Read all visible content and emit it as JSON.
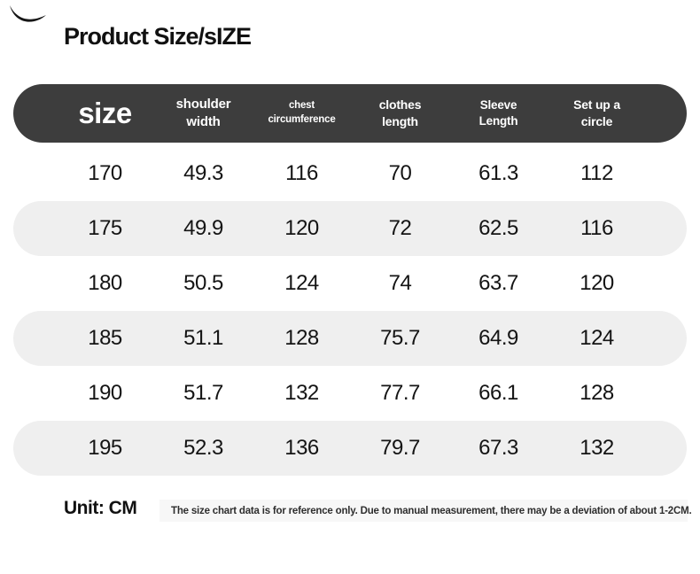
{
  "page": {
    "title": "Product Size/sIZE",
    "unit_label": "Unit: CM",
    "disclaimer": "The size chart data is for reference only. Due to manual measurement, there may be a deviation of about 1-2CM."
  },
  "colors": {
    "header_bg": "#3d3d3d",
    "header_text": "#ffffff",
    "row_alt_bg": "#efefef",
    "body_text": "#141414",
    "note_bg": "#f7f7f7"
  },
  "icons": {
    "corner_swoosh": "decorative dark brush swoosh, top-left corner"
  },
  "table": {
    "header": {
      "size_label": "size",
      "columns": [
        {
          "line1": "shoulder",
          "line2": "width"
        },
        {
          "line1": "chest",
          "line2": "circumference"
        },
        {
          "line1": "clothes",
          "line2": "length"
        },
        {
          "line1": "Sleeve",
          "line2": "Length"
        },
        {
          "line1": "Set up a",
          "line2": "circle"
        }
      ]
    },
    "rows": [
      [
        "170",
        "49.3",
        "116",
        "70",
        "61.3",
        "112"
      ],
      [
        "175",
        "49.9",
        "120",
        "72",
        "62.5",
        "116"
      ],
      [
        "180",
        "50.5",
        "124",
        "74",
        "63.7",
        "120"
      ],
      [
        "185",
        "51.1",
        "128",
        "75.7",
        "64.9",
        "124"
      ],
      [
        "190",
        "51.7",
        "132",
        "77.7",
        "66.1",
        "128"
      ],
      [
        "195",
        "52.3",
        "136",
        "79.7",
        "67.3",
        "132"
      ]
    ]
  },
  "chart_data": {
    "type": "table",
    "title": "Product Size/sIZE",
    "unit": "CM",
    "columns": [
      "size",
      "shoulder width",
      "chest circumference",
      "clothes length",
      "Sleeve Length",
      "Set up a circle"
    ],
    "rows": [
      [
        170,
        49.3,
        116,
        70,
        61.3,
        112
      ],
      [
        175,
        49.9,
        120,
        72,
        62.5,
        116
      ],
      [
        180,
        50.5,
        124,
        74,
        63.7,
        120
      ],
      [
        185,
        51.1,
        128,
        75.7,
        64.9,
        124
      ],
      [
        190,
        51.7,
        132,
        77.7,
        66.1,
        128
      ],
      [
        195,
        52.3,
        136,
        79.7,
        67.3,
        132
      ]
    ],
    "notes": "The size chart data is for reference only. Due to manual measurement, there may be a deviation of about 1-2CM."
  }
}
